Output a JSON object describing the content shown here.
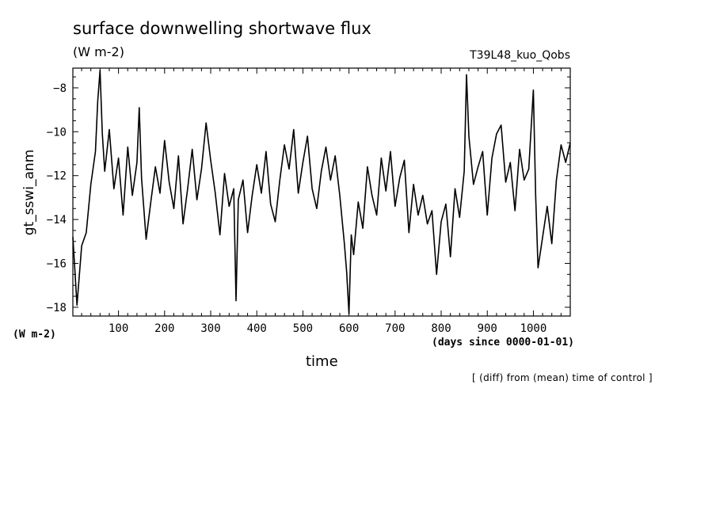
{
  "chart_data": {
    "type": "line",
    "title": "surface downwelling shortwave flux",
    "units": "(W m-2)",
    "run_label": "T39L48_kuo_Qobs",
    "xlabel": "time",
    "x_units": "(days since 0000-01-01)",
    "ylabel": "gt_sswi_anm",
    "y_units": "(W m-2)",
    "note": "[ (diff) from (mean) time of control ]",
    "xlim": [
      1,
      1080
    ],
    "ylim": [
      -18.4,
      -7.1
    ],
    "x_ticks": [
      100,
      200,
      300,
      400,
      500,
      600,
      700,
      800,
      900,
      1000
    ],
    "y_ticks": [
      -18,
      -16,
      -14,
      -12,
      -10,
      -8
    ],
    "grid": false,
    "series": [
      {
        "x": [
          1,
          10,
          20,
          30,
          40,
          50,
          55,
          60,
          65,
          70,
          80,
          90,
          100,
          110,
          120,
          130,
          140,
          145,
          150,
          160,
          170,
          180,
          190,
          200,
          210,
          220,
          230,
          240,
          250,
          260,
          270,
          280,
          290,
          300,
          310,
          320,
          330,
          340,
          350,
          355,
          360,
          370,
          380,
          390,
          400,
          410,
          420,
          430,
          440,
          450,
          460,
          470,
          480,
          490,
          500,
          510,
          520,
          530,
          540,
          550,
          560,
          570,
          580,
          590,
          595,
          600,
          605,
          610,
          620,
          630,
          640,
          650,
          660,
          670,
          680,
          690,
          700,
          710,
          720,
          730,
          740,
          750,
          760,
          770,
          780,
          790,
          800,
          810,
          820,
          830,
          840,
          850,
          855,
          860,
          870,
          880,
          890,
          900,
          910,
          920,
          930,
          940,
          950,
          960,
          970,
          980,
          990,
          1000,
          1005,
          1010,
          1020,
          1030,
          1040,
          1050,
          1060,
          1070,
          1080
        ],
        "values": [
          -14.8,
          -17.9,
          -15.2,
          -14.6,
          -12.4,
          -10.9,
          -8.6,
          -7.2,
          -10.1,
          -11.8,
          -9.9,
          -12.6,
          -11.2,
          -13.8,
          -10.7,
          -12.9,
          -11.4,
          -8.9,
          -12.1,
          -14.9,
          -13.2,
          -11.6,
          -12.8,
          -10.4,
          -12.3,
          -13.5,
          -11.1,
          -14.2,
          -12.6,
          -10.8,
          -13.1,
          -11.7,
          -9.6,
          -11.3,
          -12.8,
          -14.7,
          -11.9,
          -13.4,
          -12.6,
          -17.7,
          -13.1,
          -12.2,
          -14.6,
          -12.9,
          -11.5,
          -12.8,
          -10.9,
          -13.3,
          -14.1,
          -12.2,
          -10.6,
          -11.7,
          -9.9,
          -12.8,
          -11.4,
          -10.2,
          -12.6,
          -13.5,
          -11.8,
          -10.7,
          -12.2,
          -11.1,
          -12.9,
          -15.1,
          -16.4,
          -18.3,
          -14.7,
          -15.6,
          -13.2,
          -14.4,
          -11.6,
          -12.9,
          -13.8,
          -11.2,
          -12.7,
          -10.9,
          -13.4,
          -12.1,
          -11.3,
          -14.6,
          -12.4,
          -13.8,
          -12.9,
          -14.2,
          -13.6,
          -16.5,
          -14.1,
          -13.3,
          -15.7,
          -12.6,
          -13.9,
          -11.8,
          -7.4,
          -10.2,
          -12.4,
          -11.6,
          -10.9,
          -13.8,
          -11.2,
          -10.1,
          -9.7,
          -12.3,
          -11.4,
          -13.6,
          -10.8,
          -12.2,
          -11.7,
          -8.1,
          -12.9,
          -16.2,
          -14.8,
          -13.4,
          -15.1,
          -12.2,
          -10.6,
          -11.4,
          -10.5
        ]
      }
    ]
  }
}
